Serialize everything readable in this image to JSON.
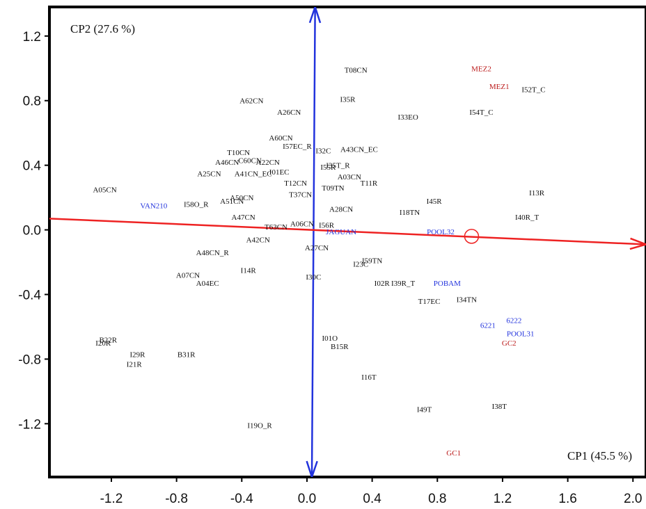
{
  "chart_data": {
    "type": "scatter",
    "title": "",
    "xlabel": "CP1 (45.5 %)",
    "ylabel": "CP2 (27.6 %)",
    "xlim": [
      -1.58,
      2.08
    ],
    "ylim": [
      -1.53,
      1.38
    ],
    "xticks": [
      -1.2,
      -0.8,
      -0.4,
      0.0,
      0.4,
      0.8,
      1.2,
      1.6,
      2.0
    ],
    "yticks": [
      1.2,
      0.8,
      0.4,
      0.0,
      -0.4,
      -0.8,
      -1.2
    ],
    "xtick_labels": [
      "-1.2",
      "-0.8",
      "-0.4",
      "0.0",
      "0.4",
      "0.8",
      "1.2",
      "1.6",
      "2.0"
    ],
    "ytick_labels": [
      "1.2",
      "0.8",
      "0.4",
      "0.0",
      "-0.4",
      "-0.8",
      "-1.2"
    ],
    "grid": false,
    "colors": {
      "black": "#111111",
      "blue": "#2233dd",
      "red": "#bb1a1a",
      "axis_red": "#ee2222",
      "axis_blue": "#2233dd"
    },
    "vectors": [
      {
        "from": [
          0.03,
          -1.53
        ],
        "to": [
          0.05,
          1.38
        ],
        "color": "#2233dd"
      },
      {
        "from": [
          -1.58,
          0.07
        ],
        "to": [
          2.08,
          -0.09
        ],
        "color": "#ee2222"
      }
    ],
    "marker": {
      "x": 1.01,
      "y": -0.04,
      "color": "#ee2222"
    },
    "points": [
      {
        "label": "T08CN",
        "x": 0.3,
        "y": 0.99,
        "color": "black"
      },
      {
        "label": "MEZ2",
        "x": 1.07,
        "y": 1.0,
        "color": "red"
      },
      {
        "label": "MEZ1",
        "x": 1.18,
        "y": 0.89,
        "color": "red"
      },
      {
        "label": "I52T_C",
        "x": 1.39,
        "y": 0.87,
        "color": "black"
      },
      {
        "label": "I35R",
        "x": 0.25,
        "y": 0.81,
        "color": "black"
      },
      {
        "label": "A62CN",
        "x": -0.34,
        "y": 0.8,
        "color": "black"
      },
      {
        "label": "A26CN",
        "x": -0.11,
        "y": 0.73,
        "color": "black"
      },
      {
        "label": "I33EO",
        "x": 0.62,
        "y": 0.7,
        "color": "black"
      },
      {
        "label": "I54T_C",
        "x": 1.07,
        "y": 0.73,
        "color": "black"
      },
      {
        "label": "A60CN",
        "x": -0.16,
        "y": 0.57,
        "color": "black"
      },
      {
        "label": "I57EC_R",
        "x": -0.06,
        "y": 0.52,
        "color": "black"
      },
      {
        "label": "A43CN_EC",
        "x": 0.32,
        "y": 0.5,
        "color": "black"
      },
      {
        "label": "T10CN",
        "x": -0.42,
        "y": 0.48,
        "color": "black"
      },
      {
        "label": "I32C",
        "x": 0.1,
        "y": 0.49,
        "color": "black"
      },
      {
        "label": "A46CN",
        "x": -0.49,
        "y": 0.42,
        "color": "black"
      },
      {
        "label": "C60CN",
        "x": -0.35,
        "y": 0.43,
        "color": "black"
      },
      {
        "label": "A22CN",
        "x": -0.24,
        "y": 0.42,
        "color": "black"
      },
      {
        "label": "I55R",
        "x": 0.13,
        "y": 0.39,
        "color": "black"
      },
      {
        "label": "I35T_R",
        "x": 0.19,
        "y": 0.4,
        "color": "black"
      },
      {
        "label": "A25CN",
        "x": -0.6,
        "y": 0.35,
        "color": "black"
      },
      {
        "label": "A41CN_EC",
        "x": -0.33,
        "y": 0.35,
        "color": "black"
      },
      {
        "label": "I01EC",
        "x": -0.17,
        "y": 0.36,
        "color": "black"
      },
      {
        "label": "A03CN",
        "x": 0.26,
        "y": 0.33,
        "color": "black"
      },
      {
        "label": "T11R",
        "x": 0.38,
        "y": 0.29,
        "color": "black"
      },
      {
        "label": "A05CN",
        "x": -1.24,
        "y": 0.25,
        "color": "black"
      },
      {
        "label": "T12CN",
        "x": -0.07,
        "y": 0.29,
        "color": "black"
      },
      {
        "label": "T09TN",
        "x": 0.16,
        "y": 0.26,
        "color": "black"
      },
      {
        "label": "T37CN",
        "x": -0.04,
        "y": 0.22,
        "color": "black"
      },
      {
        "label": "I13R",
        "x": 1.41,
        "y": 0.23,
        "color": "black"
      },
      {
        "label": "A50CN",
        "x": -0.4,
        "y": 0.2,
        "color": "black"
      },
      {
        "label": "VAN210",
        "x": -0.94,
        "y": 0.15,
        "color": "blue"
      },
      {
        "label": "A51CN",
        "x": -0.46,
        "y": 0.18,
        "color": "black"
      },
      {
        "label": "I58O_R",
        "x": -0.68,
        "y": 0.16,
        "color": "black"
      },
      {
        "label": "I45R",
        "x": 0.78,
        "y": 0.18,
        "color": "black"
      },
      {
        "label": "A28CN",
        "x": 0.21,
        "y": 0.13,
        "color": "black"
      },
      {
        "label": "I18TN",
        "x": 0.63,
        "y": 0.11,
        "color": "black"
      },
      {
        "label": "I40R_T",
        "x": 1.35,
        "y": 0.08,
        "color": "black"
      },
      {
        "label": "A47CN",
        "x": -0.39,
        "y": 0.08,
        "color": "black"
      },
      {
        "label": "A06CN",
        "x": -0.03,
        "y": 0.04,
        "color": "black"
      },
      {
        "label": "T63CN",
        "x": -0.19,
        "y": 0.02,
        "color": "black"
      },
      {
        "label": "I56R",
        "x": 0.12,
        "y": 0.03,
        "color": "black"
      },
      {
        "label": "JAGUAN",
        "x": 0.21,
        "y": -0.01,
        "color": "blue"
      },
      {
        "label": "POOL32",
        "x": 0.82,
        "y": -0.01,
        "color": "blue"
      },
      {
        "label": "A42CN",
        "x": -0.3,
        "y": -0.06,
        "color": "black"
      },
      {
        "label": "A27CN",
        "x": 0.06,
        "y": -0.11,
        "color": "black"
      },
      {
        "label": "A48CN_R",
        "x": -0.58,
        "y": -0.14,
        "color": "black"
      },
      {
        "label": "I59TN",
        "x": 0.4,
        "y": -0.19,
        "color": "black"
      },
      {
        "label": "I23C",
        "x": 0.33,
        "y": -0.21,
        "color": "black"
      },
      {
        "label": "I14R",
        "x": -0.36,
        "y": -0.25,
        "color": "black"
      },
      {
        "label": "A07CN",
        "x": -0.73,
        "y": -0.28,
        "color": "black"
      },
      {
        "label": "I30C",
        "x": 0.04,
        "y": -0.29,
        "color": "black"
      },
      {
        "label": "A04EC",
        "x": -0.61,
        "y": -0.33,
        "color": "black"
      },
      {
        "label": "I02R",
        "x": 0.46,
        "y": -0.33,
        "color": "black"
      },
      {
        "label": "I39R_T",
        "x": 0.59,
        "y": -0.33,
        "color": "black"
      },
      {
        "label": "POBAM",
        "x": 0.86,
        "y": -0.33,
        "color": "blue"
      },
      {
        "label": "T17EC",
        "x": 0.75,
        "y": -0.44,
        "color": "black"
      },
      {
        "label": "I34TN",
        "x": 0.98,
        "y": -0.43,
        "color": "black"
      },
      {
        "label": "6222",
        "x": 1.27,
        "y": -0.56,
        "color": "blue"
      },
      {
        "label": "6221",
        "x": 1.11,
        "y": -0.59,
        "color": "blue"
      },
      {
        "label": "POOL31",
        "x": 1.31,
        "y": -0.64,
        "color": "blue"
      },
      {
        "label": "GC2",
        "x": 1.24,
        "y": -0.7,
        "color": "red"
      },
      {
        "label": "B22R",
        "x": -1.22,
        "y": -0.68,
        "color": "black"
      },
      {
        "label": "I20R",
        "x": -1.25,
        "y": -0.7,
        "color": "black"
      },
      {
        "label": "I01O",
        "x": 0.14,
        "y": -0.67,
        "color": "black"
      },
      {
        "label": "B15R",
        "x": 0.2,
        "y": -0.72,
        "color": "black"
      },
      {
        "label": "I29R",
        "x": -1.04,
        "y": -0.77,
        "color": "black"
      },
      {
        "label": "B31R",
        "x": -0.74,
        "y": -0.77,
        "color": "black"
      },
      {
        "label": "I21R",
        "x": -1.06,
        "y": -0.83,
        "color": "black"
      },
      {
        "label": "I16T",
        "x": 0.38,
        "y": -0.91,
        "color": "black"
      },
      {
        "label": "I38T",
        "x": 1.18,
        "y": -1.09,
        "color": "black"
      },
      {
        "label": "I49T",
        "x": 0.72,
        "y": -1.11,
        "color": "black"
      },
      {
        "label": "I19O_R",
        "x": -0.29,
        "y": -1.21,
        "color": "black"
      },
      {
        "label": "GC1",
        "x": 0.9,
        "y": -1.38,
        "color": "red"
      }
    ]
  }
}
